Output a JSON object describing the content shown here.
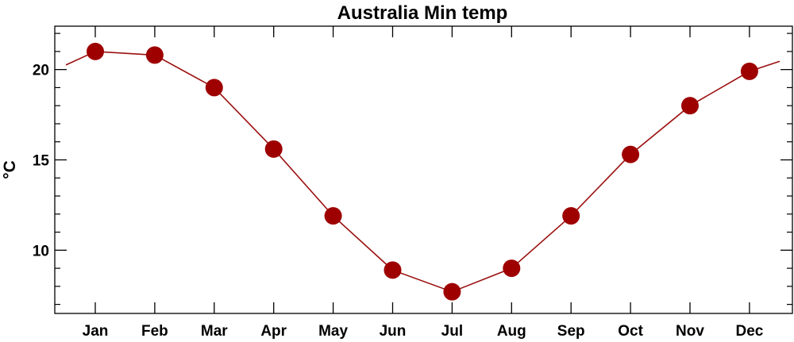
{
  "chart_data": {
    "type": "line",
    "title": "Australia Min temp",
    "xlabel": "",
    "ylabel": "°C",
    "categories": [
      "Jan",
      "Feb",
      "Mar",
      "Apr",
      "May",
      "Jun",
      "Jul",
      "Aug",
      "Sep",
      "Oct",
      "Nov",
      "Dec"
    ],
    "series": [
      {
        "values": [
          21.0,
          20.8,
          19.0,
          15.6,
          11.9,
          8.9,
          7.7,
          9.0,
          11.9,
          15.3,
          18.0,
          19.9
        ]
      }
    ],
    "ylim": [
      6.5,
      22.4
    ],
    "y_ticks": [
      10,
      15,
      20
    ],
    "y_tick_labels": [
      "10",
      "15",
      "20"
    ],
    "y_minor_step": 1,
    "grid": false,
    "legend": "none",
    "line_color": "#9b1010",
    "marker_color": "#9e0000"
  }
}
